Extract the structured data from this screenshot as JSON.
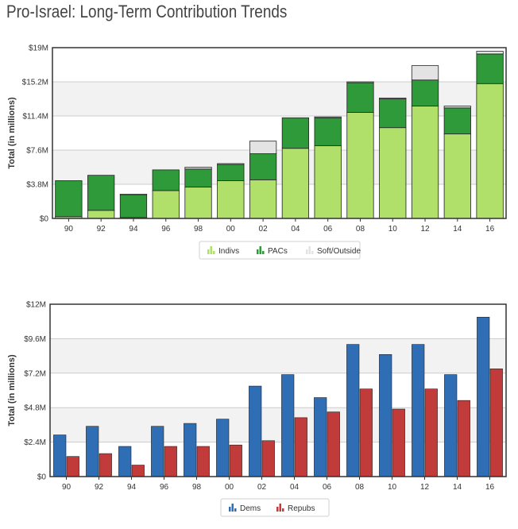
{
  "page": {
    "title": "Pro-Israel: Long-Term Contribution Trends"
  },
  "colors": {
    "indivs": "#b0df6a",
    "pacs": "#2e9a39",
    "soft": "#e3e3e3",
    "dems": "#2f6db5",
    "repubs": "#c23b3b",
    "band": "#f2f2f2",
    "grid": "#cccccc",
    "frame": "#333333"
  },
  "chart_data": [
    {
      "type": "bar",
      "stacked": true,
      "title": "",
      "xlabel": "",
      "ylabel": "Total (in millions)",
      "ylim": [
        0,
        19
      ],
      "yticks": [
        {
          "value": 0,
          "label": "$0"
        },
        {
          "value": 3.8,
          "label": "$3.8M"
        },
        {
          "value": 7.6,
          "label": "$7.6M"
        },
        {
          "value": 11.4,
          "label": "$11.4M"
        },
        {
          "value": 15.2,
          "label": "$15.2M"
        },
        {
          "value": 19,
          "label": "$19M"
        }
      ],
      "categories": [
        "90",
        "92",
        "94",
        "96",
        "98",
        "00",
        "02",
        "04",
        "06",
        "08",
        "10",
        "12",
        "14",
        "16"
      ],
      "series": [
        {
          "name": "Indivs",
          "color_key": "indivs",
          "values": [
            0.2,
            0.9,
            0.1,
            3.1,
            3.5,
            4.2,
            4.3,
            7.8,
            8.1,
            11.8,
            10.1,
            12.5,
            9.4,
            15.0
          ]
        },
        {
          "name": "PACs",
          "color_key": "pacs",
          "values": [
            4.0,
            3.9,
            2.5,
            2.3,
            2.0,
            1.8,
            2.9,
            3.4,
            3.1,
            3.3,
            3.2,
            2.9,
            2.9,
            3.3
          ]
        },
        {
          "name": "Soft/Outside",
          "color_key": "soft",
          "values": [
            0,
            0,
            0.1,
            0,
            0.2,
            0.1,
            1.4,
            0,
            0.1,
            0.1,
            0.1,
            1.6,
            0.2,
            0.3
          ]
        }
      ],
      "legend": {
        "position": "bottom"
      }
    },
    {
      "type": "bar",
      "stacked": false,
      "title": "",
      "xlabel": "",
      "ylabel": "Total (in millions)",
      "ylim": [
        0,
        12
      ],
      "yticks": [
        {
          "value": 0,
          "label": "$0"
        },
        {
          "value": 2.4,
          "label": "$2.4M"
        },
        {
          "value": 4.8,
          "label": "$4.8M"
        },
        {
          "value": 7.2,
          "label": "$7.2M"
        },
        {
          "value": 9.6,
          "label": "$9.6M"
        },
        {
          "value": 12,
          "label": "$12M"
        }
      ],
      "categories": [
        "90",
        "92",
        "94",
        "96",
        "98",
        "00",
        "02",
        "04",
        "06",
        "08",
        "10",
        "12",
        "14",
        "16"
      ],
      "series": [
        {
          "name": "Dems",
          "color_key": "dems",
          "values": [
            2.9,
            3.5,
            2.1,
            3.5,
            3.7,
            4.0,
            6.3,
            7.1,
            5.5,
            9.2,
            8.5,
            9.2,
            7.1,
            11.1
          ]
        },
        {
          "name": "Repubs",
          "color_key": "repubs",
          "values": [
            1.4,
            1.6,
            0.8,
            2.1,
            2.1,
            2.2,
            2.5,
            4.1,
            4.5,
            6.1,
            4.7,
            6.1,
            5.3,
            7.5
          ]
        }
      ],
      "legend": {
        "position": "bottom"
      }
    }
  ]
}
